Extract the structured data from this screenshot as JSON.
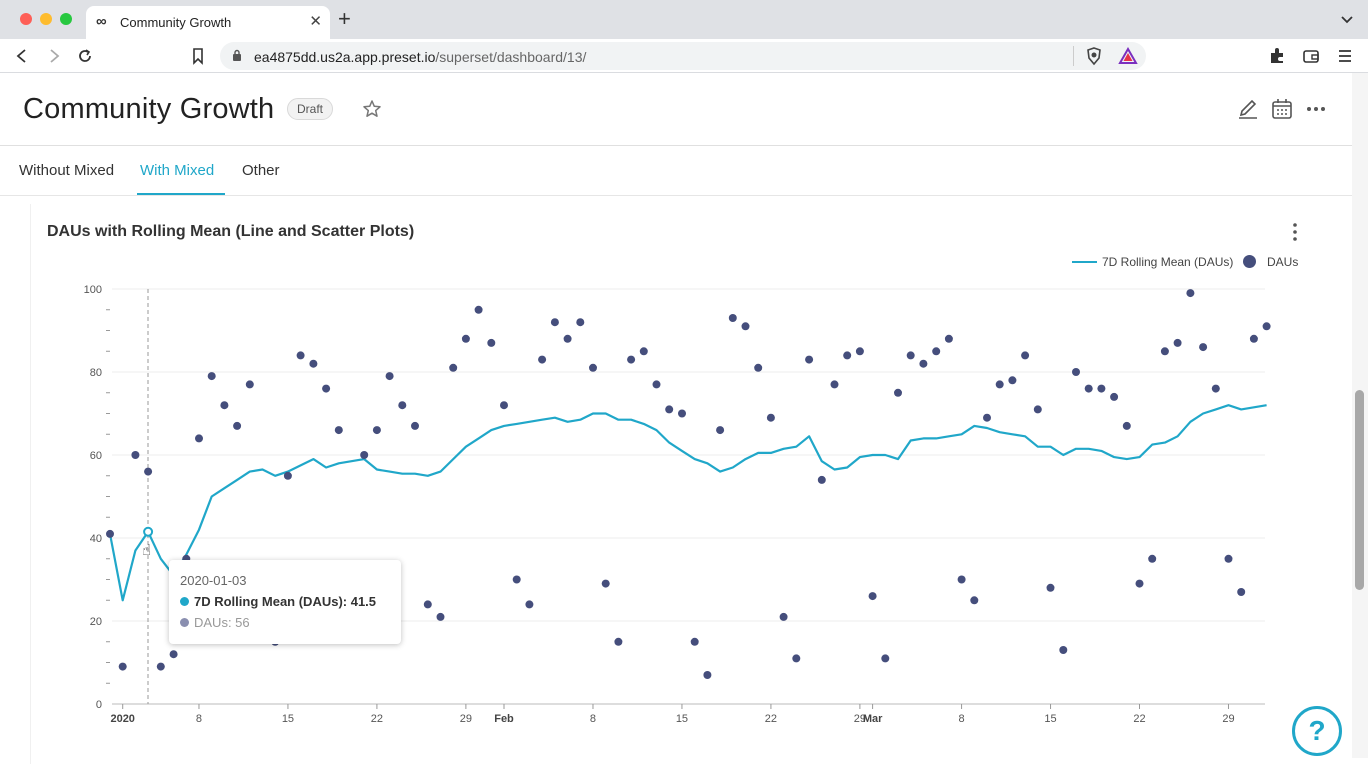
{
  "browser": {
    "tab_title": "Community Growth",
    "url_host": "ea4875dd.us2a.app.preset.io",
    "url_path": "/superset/dashboard/13/"
  },
  "dashboard": {
    "title": "Community Growth",
    "status_badge": "Draft",
    "tabs": [
      {
        "label": "Without Mixed",
        "active": false
      },
      {
        "label": "With Mixed",
        "active": true
      },
      {
        "label": "Other",
        "active": false
      }
    ]
  },
  "chart_data": {
    "type": "line",
    "title": "DAUs with Rolling Mean (Line and Scatter Plots)",
    "ylim": [
      0,
      100
    ],
    "y_ticks": [
      0,
      20,
      40,
      60,
      80,
      100
    ],
    "x_tick_labels": [
      "2020",
      "8",
      "15",
      "22",
      "29",
      "Feb",
      "8",
      "15",
      "22",
      "29",
      "Mar",
      "8",
      "15",
      "22",
      "29"
    ],
    "x_range": [
      "2020-01-01",
      "2020-03-31"
    ],
    "legend_position": "top-right",
    "colors": {
      "rolling_mean": "#20a7c9",
      "daus": "#454e7c"
    },
    "series": [
      {
        "name": "7D Rolling Mean (DAUs)",
        "kind": "line",
        "values": [
          41,
          25,
          37,
          41.5,
          35,
          31,
          36,
          42,
          50,
          52,
          54,
          56,
          56.5,
          55,
          56,
          57.5,
          59,
          57,
          58,
          58.5,
          59,
          56.5,
          56,
          55.5,
          55.5,
          55,
          56,
          59,
          62,
          64,
          66,
          67,
          67.5,
          68,
          68.5,
          69,
          68,
          68.5,
          70,
          70,
          68.5,
          68.5,
          67.5,
          66,
          63,
          61,
          59,
          58,
          56,
          57,
          59,
          60.5,
          60.5,
          61.5,
          62,
          64.5,
          58.5,
          56.5,
          57,
          59.5,
          60,
          60,
          59,
          63.5,
          64,
          64,
          64.5,
          65,
          67,
          66.5,
          65.5,
          65,
          64.5,
          62,
          62,
          60,
          61.5,
          61.5,
          61,
          59.5,
          59,
          59.5,
          62.5,
          63,
          64.5,
          68,
          70,
          71,
          72,
          71,
          71.5,
          72
        ]
      },
      {
        "name": "DAUs",
        "kind": "scatter",
        "values": [
          41,
          9,
          60,
          56,
          9,
          12,
          35,
          64,
          79,
          72,
          67,
          77,
          27,
          15,
          55,
          84,
          82,
          76,
          66,
          30,
          60,
          66,
          79,
          72,
          67,
          24,
          21,
          81,
          88,
          95,
          87,
          72,
          30,
          24,
          83,
          92,
          88,
          92,
          81,
          29,
          15,
          83,
          85,
          77,
          71,
          70,
          15,
          7,
          66,
          93,
          91,
          81,
          69,
          21,
          11,
          83,
          54,
          77,
          84,
          85,
          26,
          11,
          75,
          84,
          82,
          85,
          88,
          30,
          25,
          69,
          77,
          78,
          84,
          71,
          28,
          13,
          80,
          76,
          76,
          74,
          67,
          29,
          35,
          85,
          87,
          99,
          86,
          76,
          35,
          27,
          88,
          91
        ]
      }
    ]
  },
  "tooltip": {
    "date": "2020-01-03",
    "line1": "7D Rolling Mean (DAUs): 41.5",
    "line2": "DAUs: 56"
  },
  "help_label": "?"
}
